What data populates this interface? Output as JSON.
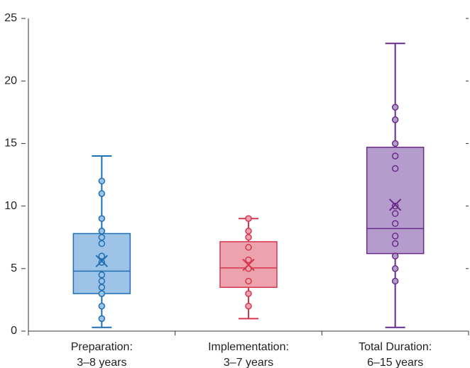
{
  "chart_data": {
    "type": "box",
    "categories": [
      [
        "Preparation:",
        "3–8 years"
      ],
      [
        "Implementation:",
        "3–7 years"
      ],
      [
        "Total Duration:",
        "6–15 years"
      ]
    ],
    "boxes": [
      {
        "color": "#1f6fb5",
        "fill": "#9dc3e6",
        "min": 0.3,
        "q1": 3.0,
        "median": 4.8,
        "q3": 7.8,
        "max": 14.0,
        "mean": 5.6,
        "points": [
          1.0,
          2.0,
          3.0,
          3.5,
          4.0,
          4.5,
          5.5,
          6.0,
          7.0,
          7.5,
          8.0,
          9.0,
          11.0,
          12.0
        ]
      },
      {
        "color": "#d6364f",
        "fill": "#eda3ad",
        "min": 1.0,
        "q1": 3.5,
        "median": 5.05,
        "q3": 7.15,
        "max": 9.0,
        "mean": 5.3,
        "points": [
          2.0,
          3.0,
          4.0,
          5.0,
          5.7,
          6.7,
          7.5,
          8.0,
          9.0
        ]
      },
      {
        "color": "#6a2b8a",
        "fill": "#b49ccc",
        "min": 0.3,
        "q1": 6.2,
        "median": 8.2,
        "q3": 14.7,
        "max": 23.0,
        "mean": 10.1,
        "points": [
          4.0,
          5.0,
          6.0,
          7.0,
          7.6,
          8.6,
          9.4,
          10.0,
          13.0,
          14.0,
          15.0,
          16.9,
          17.9
        ]
      }
    ],
    "ylim": [
      0,
      25
    ],
    "yticks": [
      0,
      5,
      10,
      15,
      20,
      25
    ]
  }
}
